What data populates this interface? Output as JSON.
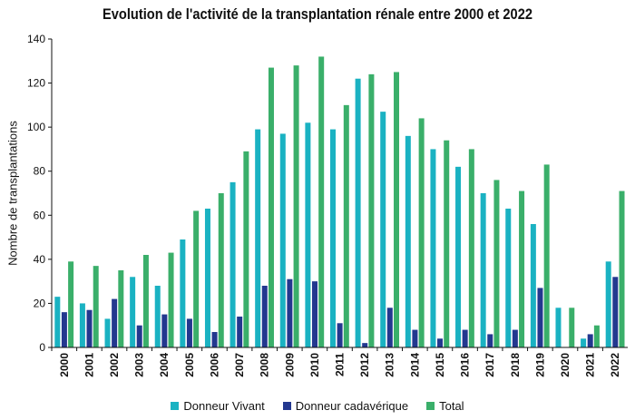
{
  "chart_data": {
    "type": "bar",
    "title": "Evolution de l'activité de la transplantation rénale entre 2000 et 2022",
    "xlabel": "",
    "ylabel": "Nombre de transplantations",
    "ylim": [
      0,
      140
    ],
    "yticks": [
      0,
      20,
      40,
      60,
      80,
      100,
      120,
      140
    ],
    "grid": false,
    "legend_position": "bottom",
    "categories": [
      "2000",
      "2001",
      "2002",
      "2003",
      "2004",
      "2005",
      "2006",
      "2007",
      "2008",
      "2009",
      "2010",
      "2011",
      "2012",
      "2013",
      "2014",
      "2015",
      "2016",
      "2017",
      "2018",
      "2019",
      "2020",
      "2021",
      "2022"
    ],
    "series": [
      {
        "name": "Donneur Vivant",
        "color": "#1ab2c2",
        "values": [
          23,
          20,
          13,
          32,
          28,
          49,
          63,
          75,
          99,
          97,
          102,
          99,
          122,
          107,
          96,
          90,
          82,
          70,
          63,
          56,
          18,
          4,
          39
        ]
      },
      {
        "name": "Donneur cadavérique",
        "color": "#23388f",
        "values": [
          16,
          17,
          22,
          10,
          15,
          13,
          7,
          14,
          28,
          31,
          30,
          11,
          2,
          18,
          8,
          4,
          8,
          6,
          8,
          27,
          0,
          6,
          32
        ]
      },
      {
        "name": "Total",
        "color": "#3aaf6a",
        "values": [
          39,
          37,
          35,
          42,
          43,
          62,
          70,
          89,
          127,
          128,
          132,
          110,
          124,
          125,
          104,
          94,
          90,
          76,
          71,
          83,
          18,
          10,
          71
        ]
      }
    ]
  }
}
